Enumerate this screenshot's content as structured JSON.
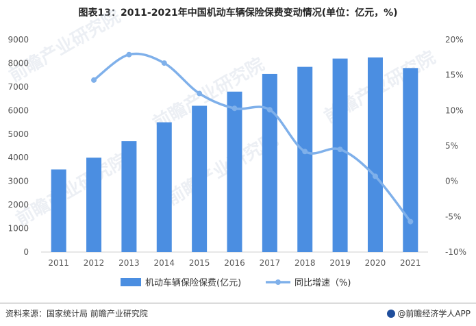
{
  "chart_data": {
    "type": "bar+line",
    "title": "图表13：2011-2021年中国机动车辆保险保费变动情况(单位：亿元，%)",
    "categories": [
      "2011",
      "2012",
      "2013",
      "2014",
      "2015",
      "2016",
      "2017",
      "2018",
      "2019",
      "2020",
      "2021"
    ],
    "series": [
      {
        "name": "机动车辆保险保费(亿元)",
        "type": "bar",
        "axis": "left",
        "color": "#4b8ee1",
        "values": [
          3500,
          4000,
          4700,
          5500,
          6200,
          6800,
          7550,
          7850,
          8200,
          8250,
          7800
        ]
      },
      {
        "name": "同比增速（%)",
        "type": "line",
        "axis": "right",
        "color": "#7fb0ea",
        "values": [
          null,
          14.3,
          17.9,
          16.7,
          12.4,
          10.3,
          10.1,
          4.2,
          4.5,
          0.7,
          -5.7
        ]
      }
    ],
    "left_axis": {
      "min": 0,
      "max": 9000,
      "ticks": [
        "0",
        "1000",
        "2000",
        "3000",
        "4000",
        "5000",
        "6000",
        "7000",
        "8000",
        "9000"
      ]
    },
    "right_axis": {
      "min": -10,
      "max": 20,
      "ticks": [
        "-10%",
        "-5%",
        "0%",
        "5%",
        "10%",
        "15%",
        "20%"
      ]
    },
    "legend": {
      "bar_label": "机动车辆保险保费(亿元)",
      "line_label": "同比增速（%)"
    },
    "watermark": "前瞻产业研究院"
  },
  "footer": {
    "source": "资料来源：国家统计局 前瞻产业研究院",
    "brand": "@前瞻经济学人APP"
  },
  "colors": {
    "bar": "#4b8ee1",
    "line": "#7fb0ea",
    "watermark": "#c9d3e2"
  }
}
